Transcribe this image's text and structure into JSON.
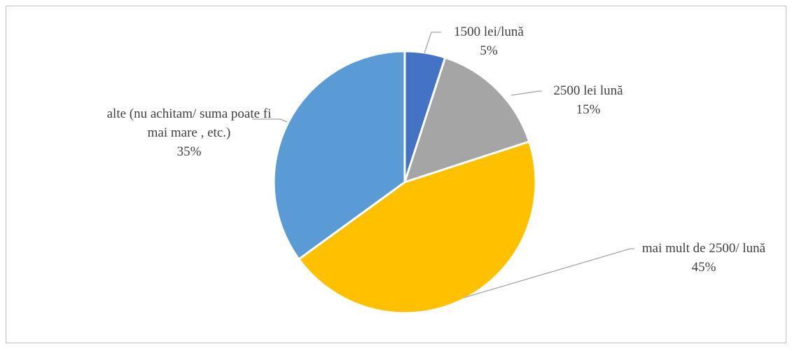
{
  "chart_data": {
    "type": "pie",
    "categories": [
      "1500 lei/lună",
      "2500 lei lună",
      "mai mult de 2500/ lună",
      "alte  (nu achitam/ suma poate fi mai mare , etc.)"
    ],
    "values": [
      5,
      15,
      45,
      35
    ],
    "value_labels": [
      "5%",
      "15%",
      "45%",
      "35%"
    ],
    "colors": [
      "#4472c4",
      "#a5a5a5",
      "#ffc000",
      "#5b9bd5"
    ]
  }
}
